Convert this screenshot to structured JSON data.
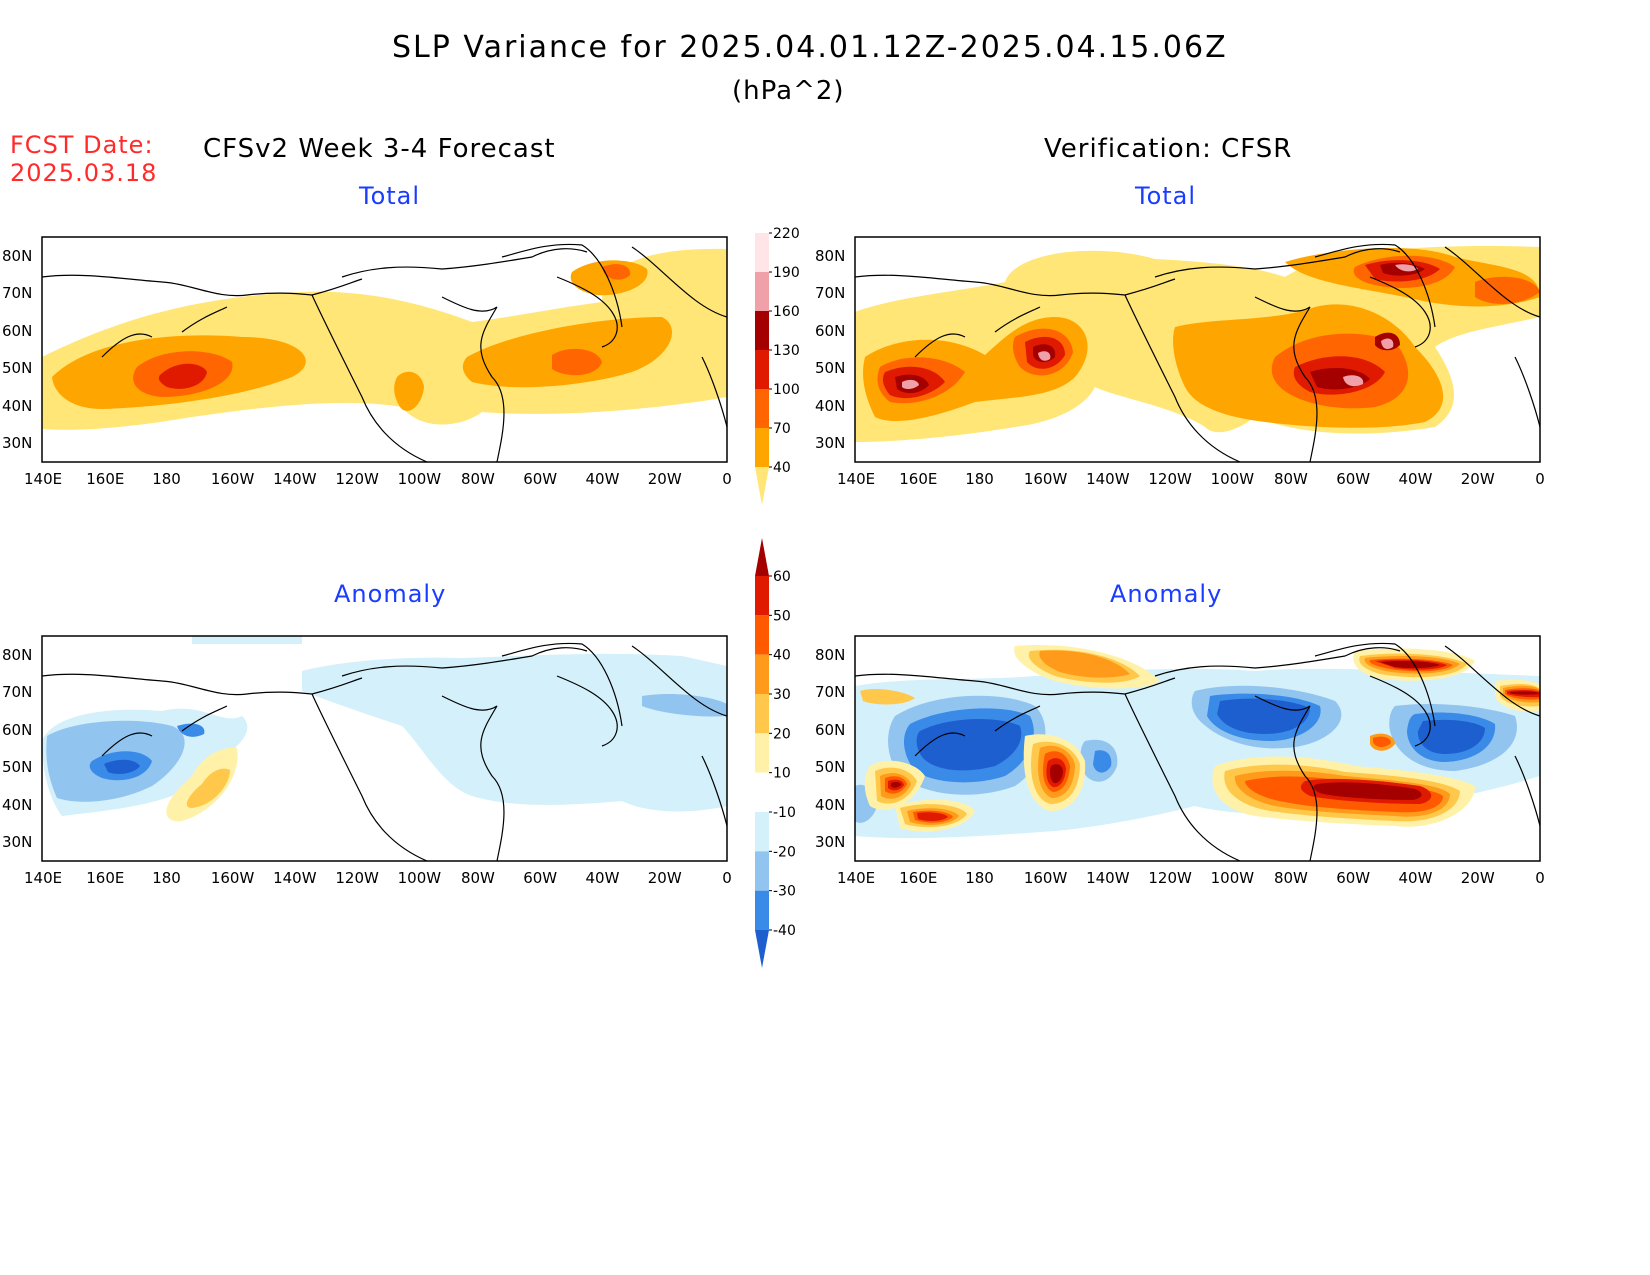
{
  "title": "SLP Variance for 2025.04.01.12Z-2025.04.15.06Z",
  "units": "(hPa^2)",
  "fcst_label": "FCST Date:",
  "fcst_date": "2025.03.18",
  "left_heading": "CFSv2 Week 3-4 Forecast",
  "right_heading": "Verification: CFSR",
  "panels": {
    "fc_total": "Total",
    "ver_total": "Total",
    "fc_anom": "Anomaly",
    "ver_anom": "Anomaly"
  },
  "lat_labels": [
    "80N",
    "70N",
    "60N",
    "50N",
    "40N",
    "30N"
  ],
  "lon_labels": [
    "140E",
    "160E",
    "180",
    "160W",
    "140W",
    "120W",
    "100W",
    "80W",
    "60W",
    "40W",
    "20W",
    "0"
  ],
  "total_colorbar": {
    "levels": [
      "40",
      "70",
      "100",
      "130",
      "160",
      "190",
      "220"
    ],
    "colors": [
      "#ffe676",
      "#ffa500",
      "#ff6500",
      "#e01a00",
      "#a50000",
      "#f0a0a8",
      "#ffe4e8"
    ]
  },
  "anom_colorbar": {
    "levels": [
      "-40",
      "-30",
      "-20",
      "-10",
      "10",
      "20",
      "30",
      "40",
      "50",
      "60"
    ],
    "colors": [
      "#1e5fd0",
      "#3a8ae8",
      "#92c4f0",
      "#d4f0fa",
      "#ffffff",
      "#fff2a8",
      "#ffc84a",
      "#ff9a1a",
      "#ff5a00",
      "#e01a00",
      "#a50000"
    ]
  },
  "chart_data": [
    {
      "type": "heatmap",
      "title": "Total",
      "panel": "CFSv2 Week 3-4 Forecast",
      "xlabel": "",
      "ylabel": "",
      "xlim": [
        140,
        360
      ],
      "ylim": [
        25,
        85
      ],
      "x_tick_labels": [
        "140E",
        "160E",
        "180",
        "160W",
        "140W",
        "120W",
        "100W",
        "80W",
        "60W",
        "40W",
        "20W",
        "0"
      ],
      "y_tick_labels": [
        "30N",
        "40N",
        "50N",
        "60N",
        "70N",
        "80N"
      ],
      "features": [
        {
          "lon": 180,
          "lat": 47,
          "value": 130
        },
        {
          "lon": 300,
          "lat": 48,
          "value": 100
        },
        {
          "lon": 320,
          "lat": 73,
          "value": 100
        }
      ]
    },
    {
      "type": "heatmap",
      "title": "Total",
      "panel": "Verification: CFSR",
      "xlabel": "",
      "ylabel": "",
      "xlim": [
        140,
        360
      ],
      "ylim": [
        25,
        85
      ],
      "x_tick_labels": [
        "140E",
        "160E",
        "180",
        "160W",
        "140W",
        "120W",
        "100W",
        "80W",
        "60W",
        "40W",
        "20W",
        "0"
      ],
      "y_tick_labels": [
        "30N",
        "40N",
        "50N",
        "60N",
        "70N",
        "80N"
      ],
      "features": [
        {
          "lon": 156,
          "lat": 44,
          "value": 220
        },
        {
          "lon": 203,
          "lat": 50,
          "value": 220
        },
        {
          "lon": 300,
          "lat": 45,
          "value": 220
        },
        {
          "lon": 307,
          "lat": 56,
          "value": 220
        },
        {
          "lon": 318,
          "lat": 77,
          "value": 220
        }
      ]
    },
    {
      "type": "heatmap",
      "title": "Anomaly",
      "panel": "CFSv2 Week 3-4 Forecast",
      "xlabel": "",
      "ylabel": "",
      "xlim": [
        140,
        360
      ],
      "ylim": [
        25,
        85
      ],
      "x_tick_labels": [
        "140E",
        "160E",
        "180",
        "160W",
        "140W",
        "120W",
        "100W",
        "80W",
        "60W",
        "40W",
        "20W",
        "0"
      ],
      "y_tick_labels": [
        "30N",
        "40N",
        "50N",
        "60N",
        "70N",
        "80N"
      ],
      "features": [
        {
          "lon": 165,
          "lat": 50,
          "value": -30
        },
        {
          "lon": 182,
          "lat": 44,
          "value": 30
        }
      ]
    },
    {
      "type": "heatmap",
      "title": "Anomaly",
      "panel": "Verification: CFSR",
      "xlabel": "",
      "ylabel": "",
      "xlim": [
        140,
        360
      ],
      "ylim": [
        25,
        85
      ],
      "x_tick_labels": [
        "140E",
        "160E",
        "180",
        "160W",
        "140W",
        "120W",
        "100W",
        "80W",
        "60W",
        "40W",
        "20W",
        "0"
      ],
      "y_tick_labels": [
        "30N",
        "40N",
        "50N",
        "60N",
        "70N",
        "80N"
      ],
      "features": [
        {
          "lon": 183,
          "lat": 56,
          "value": -40
        },
        {
          "lon": 205,
          "lat": 47,
          "value": 60
        },
        {
          "lon": 157,
          "lat": 46,
          "value": 60
        },
        {
          "lon": 162,
          "lat": 37,
          "value": 50
        },
        {
          "lon": 270,
          "lat": 60,
          "value": -40
        },
        {
          "lon": 320,
          "lat": 54,
          "value": -40
        },
        {
          "lon": 320,
          "lat": 77,
          "value": 60
        },
        {
          "lon": 310,
          "lat": 43,
          "value": 60
        },
        {
          "lon": 288,
          "lat": 48,
          "value": 60
        }
      ]
    }
  ]
}
